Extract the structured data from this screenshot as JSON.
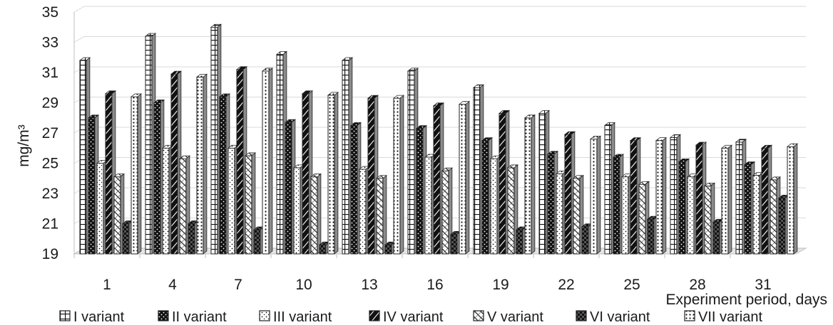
{
  "chart_data": {
    "type": "bar",
    "style": "3d-clustered-column",
    "title": "",
    "xlabel": "Experiment  period, days",
    "ylabel": "mg/m³",
    "ylim": [
      19,
      35
    ],
    "ytick_step": 2,
    "grid": true,
    "legend_position": "bottom",
    "categories": [
      "1",
      "4",
      "7",
      "10",
      "13",
      "16",
      "19",
      "22",
      "25",
      "28",
      "31"
    ],
    "series": [
      {
        "name": "I variant",
        "pattern": "grid",
        "values": [
          31.8,
          33.4,
          34.0,
          32.2,
          31.8,
          31.1,
          30.0,
          28.3,
          27.5,
          26.7,
          26.4
        ]
      },
      {
        "name": "II variant",
        "pattern": "dark-dots",
        "values": [
          28.0,
          29.0,
          29.4,
          27.7,
          27.5,
          27.3,
          26.5,
          25.6,
          25.4,
          25.1,
          24.9
        ]
      },
      {
        "name": "III variant",
        "pattern": "light-dots",
        "values": [
          25.0,
          26.0,
          26.0,
          24.7,
          24.6,
          25.4,
          25.3,
          24.3,
          24.1,
          24.1,
          24.2
        ]
      },
      {
        "name": "IV variant",
        "pattern": "dark-stripe",
        "values": [
          29.6,
          30.9,
          31.2,
          29.6,
          29.3,
          28.8,
          28.3,
          26.9,
          26.5,
          26.2,
          26.0
        ]
      },
      {
        "name": "V variant",
        "pattern": "diag-light",
        "values": [
          24.1,
          25.3,
          25.5,
          24.1,
          24.0,
          24.5,
          24.7,
          24.0,
          23.6,
          23.5,
          23.9
        ]
      },
      {
        "name": "VI variant",
        "pattern": "dark-check",
        "values": [
          21.0,
          21.0,
          20.6,
          19.6,
          19.6,
          20.3,
          20.6,
          20.8,
          21.3,
          21.1,
          22.7
        ]
      },
      {
        "name": "VII variant",
        "pattern": "dots-fine",
        "values": [
          29.4,
          30.7,
          31.1,
          29.5,
          29.3,
          28.9,
          28.0,
          26.6,
          26.5,
          26.0,
          26.1
        ]
      }
    ]
  }
}
